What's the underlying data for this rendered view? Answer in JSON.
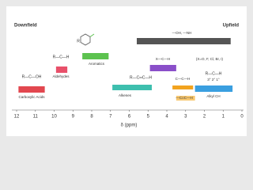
{
  "chart_data": {
    "type": "range",
    "left_label": "Downfield",
    "right_label": "Upfield",
    "xlabel": "δ (ppm)",
    "xlim": [
      12,
      0
    ],
    "xticks": [
      12,
      11,
      10,
      9,
      8,
      7,
      6,
      5,
      4,
      3,
      2,
      1,
      0
    ],
    "ranges": [
      {
        "name": "Carboxylic Acids",
        "color": "#e2474f",
        "values": [
          11.9,
          10.5
        ],
        "structure": "R—C—OH"
      },
      {
        "name": "Aldehydes",
        "color": "#e8506a",
        "values": [
          9.9,
          9.3
        ],
        "structure": "R—C—H"
      },
      {
        "name": "Aromatics",
        "color": "#5cc24f",
        "values": [
          8.5,
          7.1
        ],
        "structure": "R"
      },
      {
        "name": "Alkenes",
        "color": "#3dbfae",
        "values": [
          6.9,
          4.8
        ],
        "structure": "R—C═C—H"
      },
      {
        "name": "—OH, —NH",
        "color": "#555555",
        "values": [
          5.6,
          0.6
        ]
      },
      {
        "name": "X—C—H",
        "color": "#8a4fc9",
        "values": [
          4.9,
          3.5
        ],
        "note": "(X=O, F, Cl, Br, I)"
      },
      {
        "name": "C—C—H",
        "color": "#f2a31f",
        "values": [
          3.7,
          2.6
        ]
      },
      {
        "name": "—C≡C—H",
        "color": "#f8c870",
        "values": [
          3.5,
          2.5
        ]
      },
      {
        "name": "Alkyl CH",
        "color": "#3a9fe0",
        "values": [
          2.5,
          0.5
        ],
        "structure": "R—C—H",
        "note": "3°  2°  1°"
      }
    ]
  }
}
